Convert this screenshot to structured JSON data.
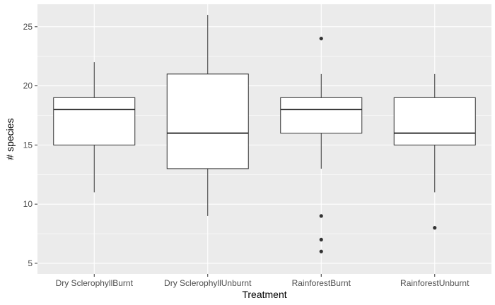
{
  "chart_data": {
    "type": "box",
    "xlabel": "Treatment",
    "ylabel": "# species",
    "ylim": [
      4.1,
      26.9
    ],
    "yticks": [
      5,
      10,
      15,
      20,
      25
    ],
    "ytick_labels": [
      "5",
      "10",
      "15",
      "20",
      "25"
    ],
    "categories": [
      "Dry SclerophyllBurnt",
      "Dry SclerophyllUnburnt",
      "RainforestBurnt",
      "RainforestUnburnt"
    ],
    "boxes": [
      {
        "category": "Dry SclerophyllBurnt",
        "whisker_low": 11,
        "q1": 15,
        "median": 18,
        "q3": 19,
        "whisker_high": 22,
        "outliers": []
      },
      {
        "category": "Dry SclerophyllUnburnt",
        "whisker_low": 9,
        "q1": 13,
        "median": 16,
        "q3": 21,
        "whisker_high": 26,
        "outliers": []
      },
      {
        "category": "RainforestBurnt",
        "whisker_low": 13,
        "q1": 16,
        "median": 18,
        "q3": 19,
        "whisker_high": 21,
        "outliers": [
          24,
          9,
          7,
          6
        ]
      },
      {
        "category": "RainforestUnburnt",
        "whisker_low": 11,
        "q1": 15,
        "median": 16,
        "q3": 19,
        "whisker_high": 21,
        "outliers": [
          8
        ]
      }
    ],
    "grid": true,
    "legend": "none",
    "colors": {
      "panel": "#ebebeb",
      "grid_major": "#ffffff",
      "box_fill": "#ffffff",
      "box_line": "#333333",
      "tick_text": "#4d4d4d"
    }
  }
}
